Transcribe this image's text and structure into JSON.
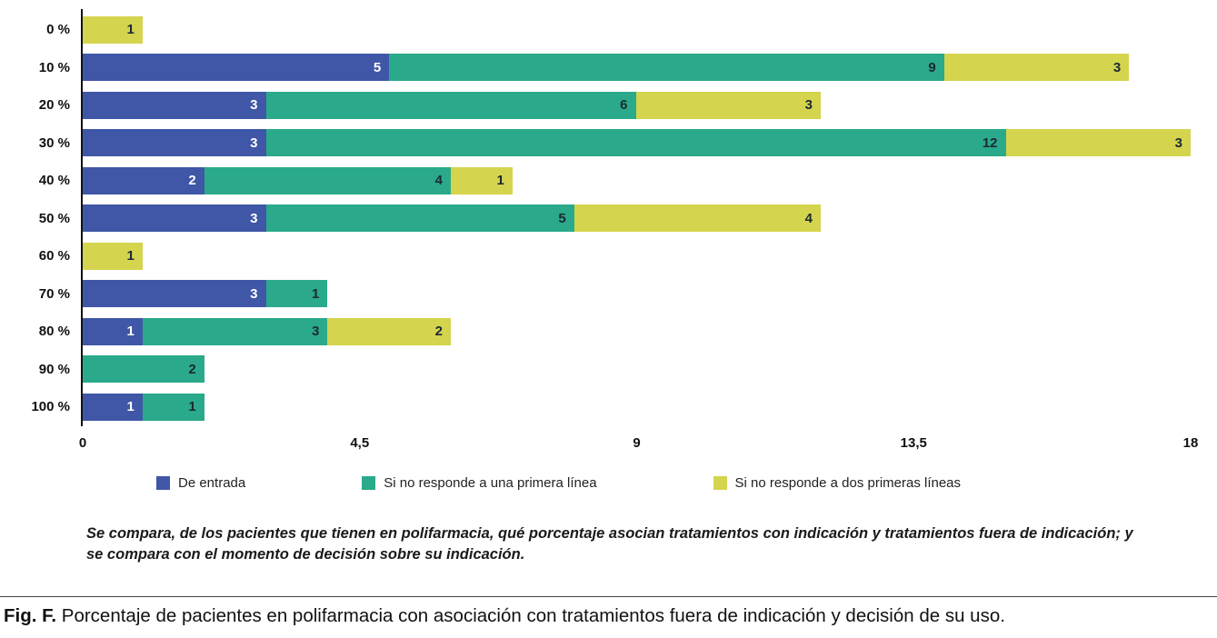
{
  "chart_data": {
    "type": "bar",
    "orientation": "horizontal",
    "stacked": true,
    "title": "",
    "xlabel": "",
    "ylabel": "",
    "categories": [
      "0 %",
      "10 %",
      "20 %",
      "30 %",
      "40 %",
      "50 %",
      "60 %",
      "70 %",
      "80 %",
      "90 %",
      "100 %"
    ],
    "series": [
      {
        "name": "De entrada",
        "color": "#3f57a6",
        "label_color": "#ffffff",
        "values": [
          0,
          5,
          3,
          3,
          2,
          3,
          0,
          3,
          1,
          0,
          1
        ]
      },
      {
        "name": "Si no responde a una primera línea",
        "color": "#2aaa8a",
        "label_color": "#1c2833",
        "values": [
          0,
          9,
          6,
          12,
          4,
          5,
          0,
          1,
          3,
          2,
          1
        ]
      },
      {
        "name": "Si no responde a dos primeras líneas",
        "color": "#d4d44e",
        "label_color": "#1c2833",
        "values": [
          1,
          3,
          3,
          3,
          1,
          4,
          1,
          0,
          2,
          0,
          0
        ]
      }
    ],
    "xlim": [
      0,
      18
    ],
    "x_ticks": [
      "0",
      "4,5",
      "9",
      "13,5",
      "18"
    ],
    "grid": false,
    "legend_position": "bottom"
  },
  "note": "Se compara, de los pacientes que tienen en polifarmacia, qué porcentaje asocian tratamientos con indicación y tratamientos fuera de indicación; y se compara con el momento de decisión sobre su indicación.",
  "caption": {
    "label": "Fig. F.",
    "text": "Porcentaje de pacientes en polifarmacia con asociación con tratamientos fuera de indicación y decisión de su uso."
  }
}
